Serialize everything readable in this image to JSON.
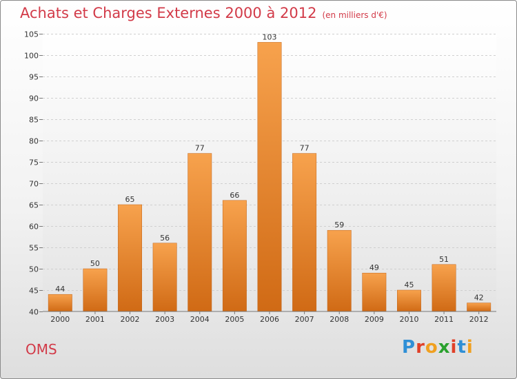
{
  "title": "Achats et Charges Externes 2000 à 2012",
  "subtitle": "(en milliers d'€)",
  "commune": "OMS",
  "logo": [
    "P",
    "r",
    "o",
    "x",
    "i",
    "t",
    "i"
  ],
  "colors": {
    "accent": "#d23a48",
    "bar_top": "#f7a24d",
    "bar_bottom": "#d06a15",
    "logo": [
      "#2f8fd6",
      "#e04028",
      "#f0a020",
      "#2aa12e",
      "#e04028",
      "#2f8fd6",
      "#f0a020"
    ]
  },
  "chart_data": {
    "type": "bar",
    "categories": [
      "2000",
      "2001",
      "2002",
      "2003",
      "2004",
      "2005",
      "2006",
      "2007",
      "2008",
      "2009",
      "2010",
      "2011",
      "2012"
    ],
    "values": [
      44,
      50,
      65,
      56,
      77,
      66,
      103,
      77,
      59,
      49,
      45,
      51,
      42
    ],
    "title": "Achats et Charges Externes 2000 à 2012",
    "subtitle": "(en milliers d'€)",
    "xlabel": "",
    "ylabel": "",
    "ylim": [
      40,
      105
    ],
    "yticks": [
      40,
      45,
      50,
      55,
      60,
      65,
      70,
      75,
      80,
      85,
      90,
      95,
      100,
      105
    ],
    "grid": true,
    "legend": "none"
  }
}
